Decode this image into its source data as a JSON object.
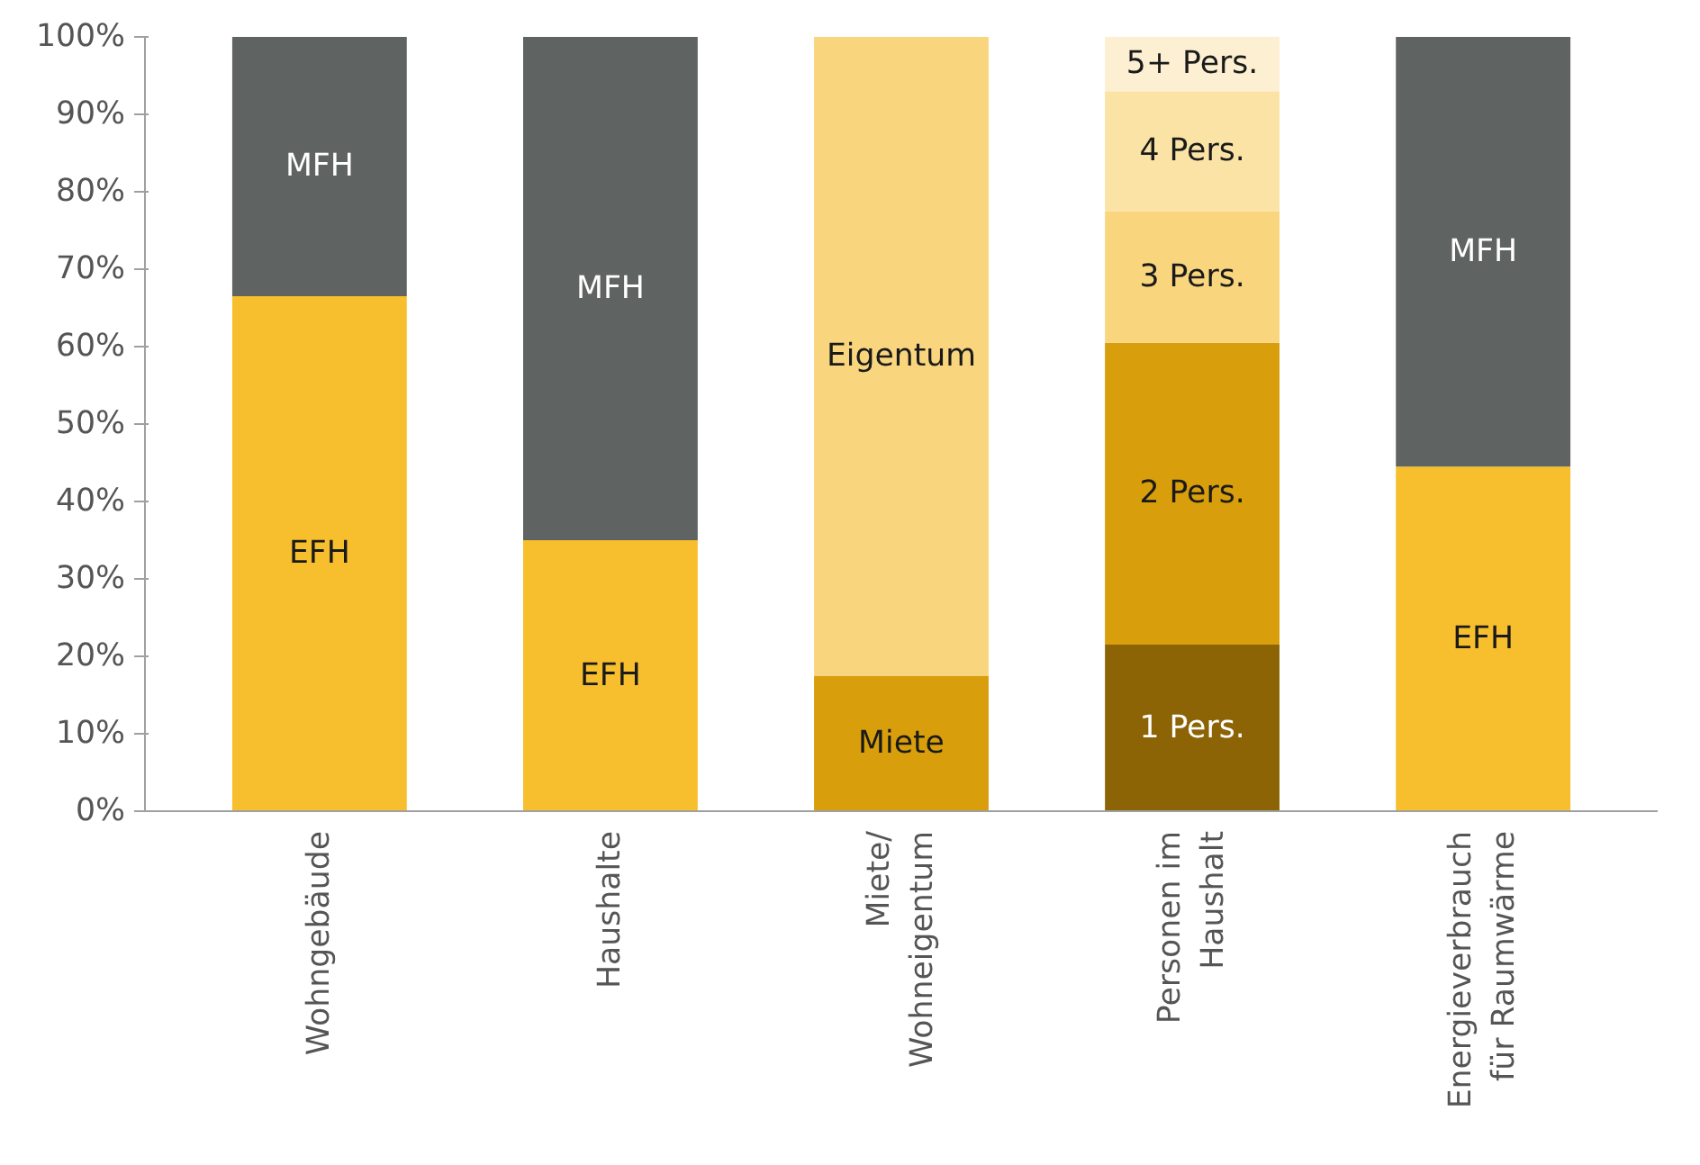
{
  "chart_data": {
    "type": "bar",
    "stacked": true,
    "categories": [
      "Wohngebäude",
      "Haushalte",
      "Miete/\nWohneigentum",
      "Personen im\nHaushalt",
      "Energieverbrauch\nfür Raumwärme"
    ],
    "series": [
      {
        "name": "EFH",
        "color": "#f7be2e",
        "values": [
          66.5,
          35,
          null,
          null,
          44.5
        ]
      },
      {
        "name": "MFH",
        "color": "#5f6362",
        "values": [
          33.5,
          65,
          null,
          null,
          55.5
        ]
      },
      {
        "name": "Miete",
        "color": "#d99e0b",
        "values": [
          null,
          null,
          17.5,
          null,
          null
        ]
      },
      {
        "name": "Eigentum",
        "color": "#f9d67e",
        "values": [
          null,
          null,
          82.5,
          null,
          null
        ]
      },
      {
        "name": "1 Pers.",
        "color": "#8c6405",
        "values": [
          null,
          null,
          null,
          21.5,
          null
        ]
      },
      {
        "name": "2 Pers.",
        "color": "#d99e0b",
        "values": [
          null,
          null,
          null,
          39,
          null
        ]
      },
      {
        "name": "3 Pers.",
        "color": "#f9d67e",
        "values": [
          null,
          null,
          null,
          17,
          null
        ]
      },
      {
        "name": "4 Pers.",
        "color": "#fbe3a6",
        "values": [
          null,
          null,
          null,
          15.5,
          null
        ]
      },
      {
        "name": "5+ Pers.",
        "color": "#fdf0d2",
        "values": [
          null,
          null,
          null,
          7,
          null
        ]
      }
    ],
    "ylim": [
      0,
      100
    ],
    "yticks": [
      {
        "value": 0,
        "label": "0%"
      },
      {
        "value": 10,
        "label": "10%"
      },
      {
        "value": 20,
        "label": "20%"
      },
      {
        "value": 30,
        "label": "30%"
      },
      {
        "value": 40,
        "label": "40%"
      },
      {
        "value": 50,
        "label": "50%"
      },
      {
        "value": 60,
        "label": "60%"
      },
      {
        "value": 70,
        "label": "70%"
      },
      {
        "value": 80,
        "label": "80%"
      },
      {
        "value": 90,
        "label": "90%"
      },
      {
        "value": 100,
        "label": "100%"
      }
    ]
  }
}
